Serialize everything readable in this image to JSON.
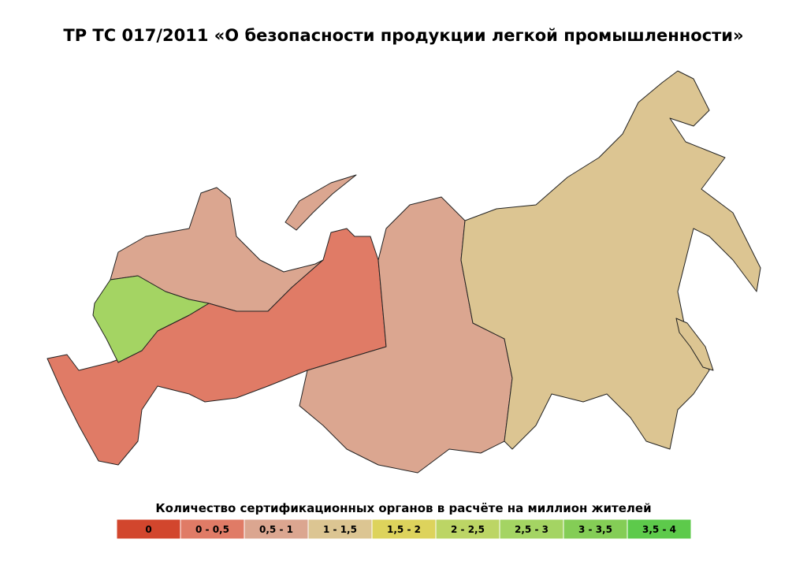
{
  "title": "ТР ТС 017/2011 «О безопасности продукции легкой промышленности»",
  "legend": {
    "title": "Количество сертификационных органов в расчёте на миллион жителей",
    "items": [
      {
        "label": "0",
        "color": "#d2462d"
      },
      {
        "label": "0 - 0,5",
        "color": "#e07b66"
      },
      {
        "label": "0,5 - 1",
        "color": "#dba690"
      },
      {
        "label": "1 - 1,5",
        "color": "#dcc592"
      },
      {
        "label": "1,5 - 2",
        "color": "#ddd35c"
      },
      {
        "label": "2 - 2,5",
        "color": "#bcd565"
      },
      {
        "label": "2,5 - 3",
        "color": "#a4d463"
      },
      {
        "label": "3 - 3,5",
        "color": "#84cd56"
      },
      {
        "label": "3,5 - 4",
        "color": "#5dca4b"
      }
    ]
  }
}
